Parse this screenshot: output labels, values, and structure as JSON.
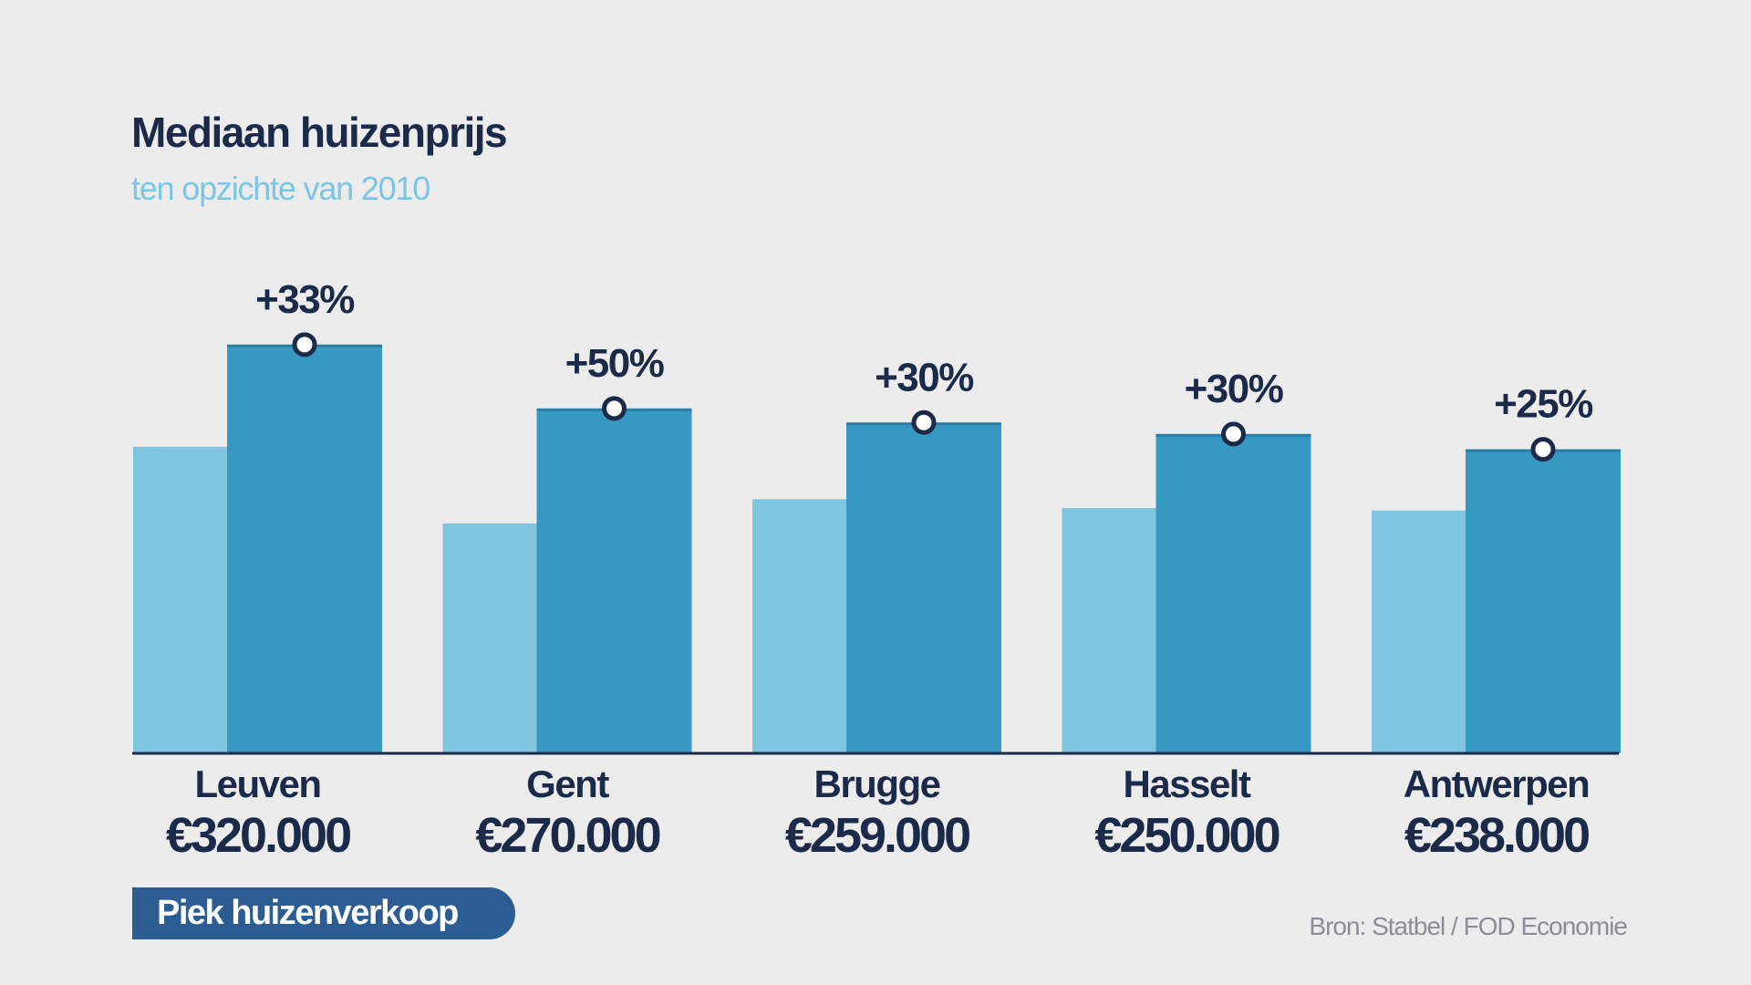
{
  "header": {
    "title": "Mediaan huizenprijs",
    "subtitle": "ten opzichte van 2010"
  },
  "legend_badge": "Piek huizenverkoop",
  "source": "Bron: Statbel / FOD Economie",
  "colors": {
    "background": "#ececed",
    "bar_2010": "#80c5e0",
    "bar_current": "#3798c1",
    "bar_top_edge": "#2b7fa3",
    "text_dark": "#1c2a4a",
    "subtitle": "#7cc6e3",
    "badge": "#2b5d93",
    "source": "#8a8f97"
  },
  "chart_data": {
    "type": "bar",
    "categories": [
      "Leuven",
      "Gent",
      "Brugge",
      "Hasselt",
      "Antwerpen"
    ],
    "series": [
      {
        "values": [
          240000,
          180000,
          199000,
          192000,
          190000
        ]
      },
      {
        "values": [
          320000,
          270000,
          259000,
          250000,
          238000
        ]
      }
    ],
    "value_labels": [
      "€320.000",
      "€270.000",
      "€259.000",
      "€250.000",
      "€238.000"
    ],
    "change_labels": [
      "+33%",
      "+50%",
      "+30%",
      "+30%",
      "+25%"
    ],
    "title": "Mediaan huizenprijs",
    "subtitle": "ten opzichte van 2010",
    "ylim": [
      0,
      357000
    ],
    "grid": false
  }
}
